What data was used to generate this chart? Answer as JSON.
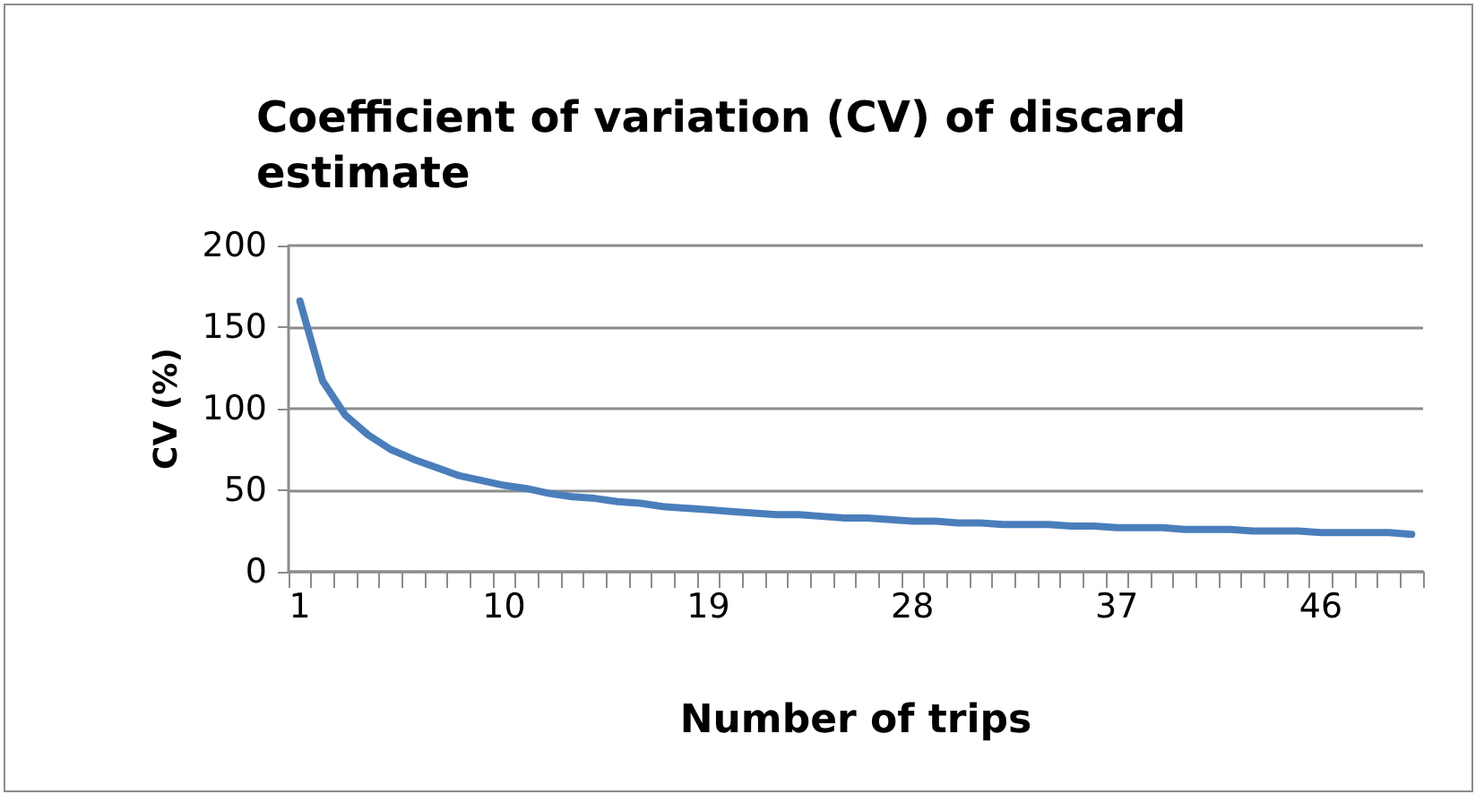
{
  "chart_data": {
    "type": "line",
    "title": "Coefficient of variation (CV) of discard\nestimate",
    "xlabel": "Number of trips",
    "ylabel": "CV (%)",
    "categories": [
      "1",
      null,
      null,
      null,
      null,
      null,
      null,
      null,
      null,
      "10",
      null,
      null,
      null,
      null,
      null,
      null,
      null,
      null,
      "19",
      null,
      null,
      null,
      null,
      null,
      null,
      null,
      null,
      "28",
      null,
      null,
      null,
      null,
      null,
      null,
      null,
      null,
      "37",
      null,
      null,
      null,
      null,
      null,
      null,
      null,
      null,
      "46",
      null,
      null,
      null,
      null
    ],
    "series": [
      {
        "color": "#4a7ebb",
        "values": [
          166,
          117,
          96,
          84,
          75,
          69,
          64,
          59,
          56,
          53,
          51,
          48,
          46,
          45,
          43,
          42,
          40,
          39,
          38,
          37,
          36,
          35,
          35,
          34,
          33,
          33,
          32,
          31,
          31,
          30,
          30,
          29,
          29,
          29,
          28,
          28,
          27,
          27,
          27,
          26,
          26,
          26,
          25,
          25,
          25,
          24,
          24,
          24,
          24,
          23
        ]
      }
    ],
    "ylim": [
      0,
      200
    ],
    "yticks": [
      0,
      50,
      100,
      150,
      200
    ],
    "grid": "y",
    "marker": "none",
    "line_style": "solid"
  }
}
